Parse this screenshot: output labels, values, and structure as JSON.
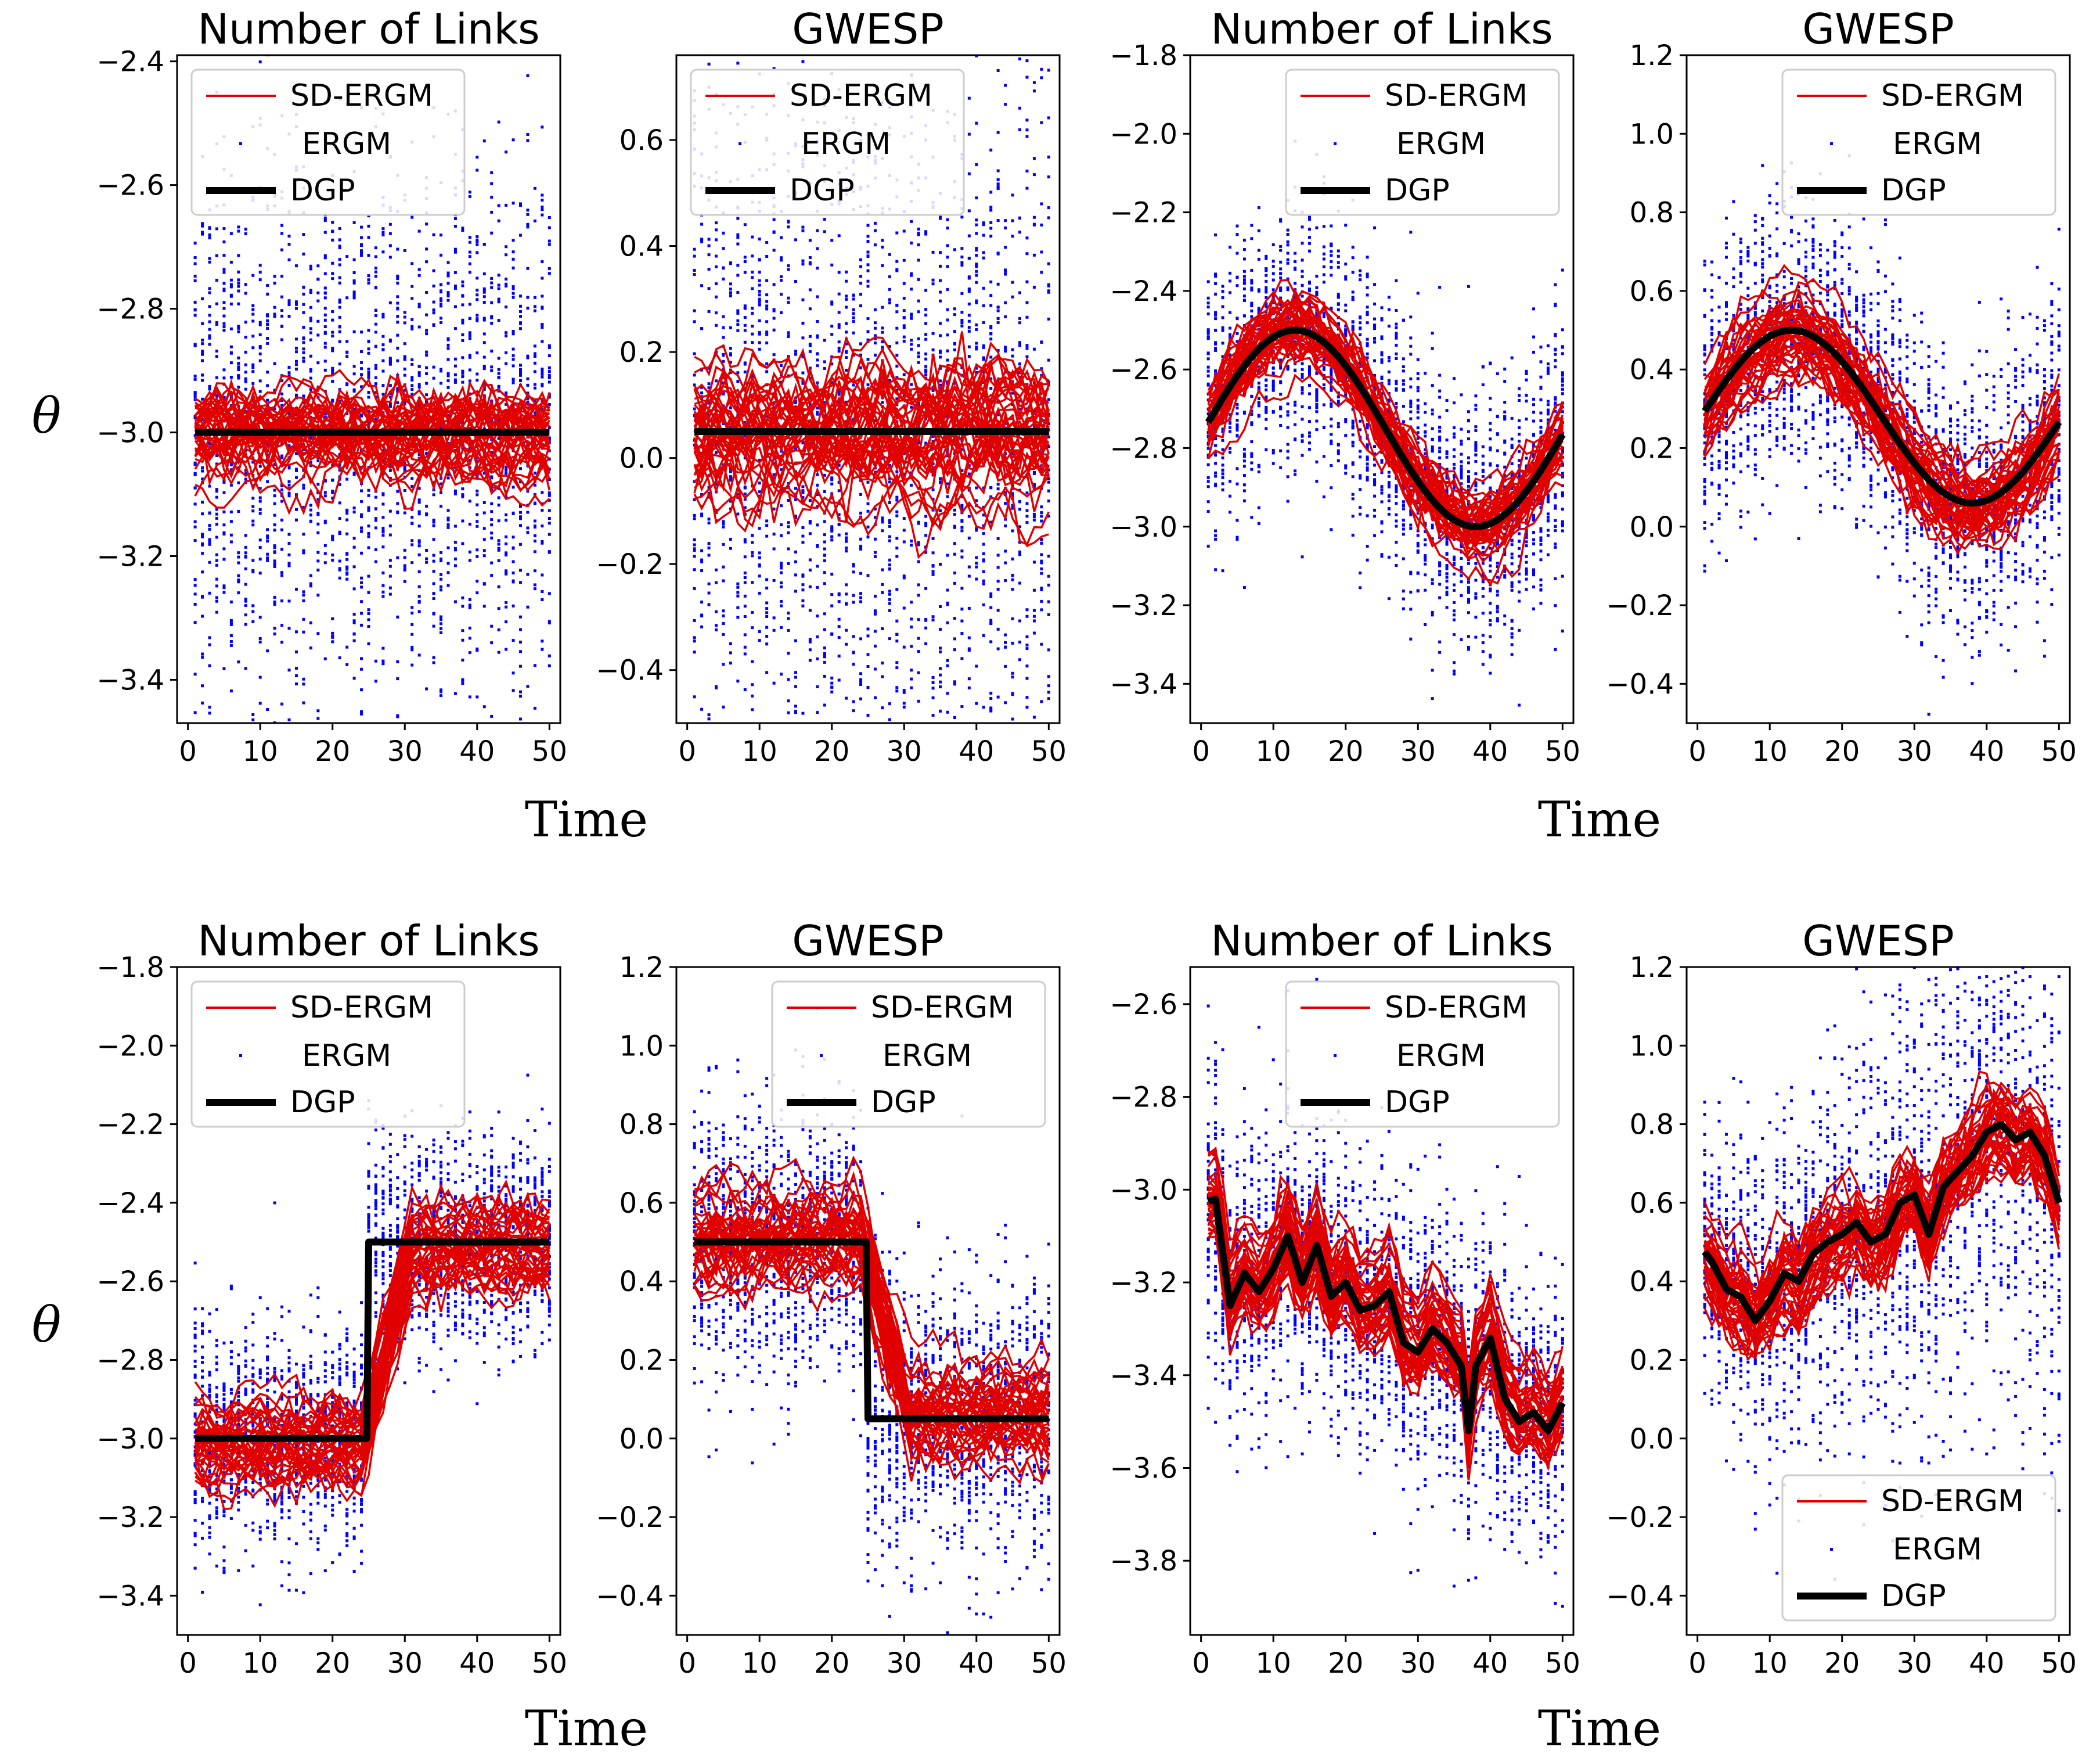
{
  "figure": {
    "xlabel": "Time",
    "ylabel": "θ",
    "colors": {
      "sd_ergm": "#e00000",
      "ergm": "#0000ff",
      "dgp": "#000000"
    }
  },
  "chart_data": [
    {
      "type": "line",
      "title": "Number of Links",
      "ylim": [
        -3.47,
        -2.39
      ],
      "yticks": [
        "−2.4",
        "−2.6",
        "−2.8",
        "−3.0",
        "−3.2",
        "−3.4"
      ],
      "ytick_values": [
        -2.4,
        -2.6,
        -2.8,
        -3.0,
        -3.2,
        -3.4
      ],
      "xlim": [
        -1.5,
        51.5
      ],
      "xticks": [
        "0",
        "10",
        "20",
        "30",
        "40",
        "50"
      ],
      "xtick_values": [
        0,
        10,
        20,
        30,
        40,
        50
      ],
      "legend": [
        "SD-ERGM",
        "ERGM",
        "DGP"
      ],
      "legend_loc": "upper-left",
      "dgp": {
        "kind": "const",
        "value": -3.0
      },
      "sd_spread": 0.045,
      "ergm_spread": 0.22,
      "trend": 0
    },
    {
      "type": "line",
      "title": "GWESP",
      "ylim": [
        -0.5,
        0.76
      ],
      "yticks": [
        "0.6",
        "0.4",
        "0.2",
        "0.0",
        "−0.2",
        "−0.4"
      ],
      "ytick_values": [
        0.6,
        0.4,
        0.2,
        0.0,
        -0.2,
        -0.4
      ],
      "xlim": [
        -1.5,
        51.5
      ],
      "xticks": [
        "0",
        "10",
        "20",
        "30",
        "40",
        "50"
      ],
      "xtick_values": [
        0,
        10,
        20,
        30,
        40,
        50
      ],
      "legend": [
        "SD-ERGM",
        "ERGM",
        "DGP"
      ],
      "legend_loc": "upper-left",
      "dgp": {
        "kind": "const",
        "value": 0.05
      },
      "sd_spread": 0.07,
      "ergm_spread": 0.35,
      "trend": 0
    },
    {
      "type": "line",
      "title": "Number of Links",
      "ylim": [
        -3.5,
        -1.8
      ],
      "yticks": [
        "−1.8",
        "−2.0",
        "−2.2",
        "−2.4",
        "−2.6",
        "−2.8",
        "−3.0",
        "−3.2",
        "−3.4"
      ],
      "ytick_values": [
        -1.8,
        -2.0,
        -2.2,
        -2.4,
        -2.6,
        -2.8,
        -3.0,
        -3.2,
        -3.4
      ],
      "xlim": [
        -1.5,
        51.5
      ],
      "xticks": [
        "0",
        "10",
        "20",
        "30",
        "40",
        "50"
      ],
      "xtick_values": [
        0,
        10,
        20,
        30,
        40,
        50
      ],
      "legend": [
        "SD-ERGM",
        "ERGM",
        "DGP"
      ],
      "legend_loc": "upper-right",
      "dgp": {
        "kind": "sine",
        "mean": -2.75,
        "amp": 0.25
      },
      "sd_spread": 0.06,
      "ergm_spread": 0.17,
      "trend": 0
    },
    {
      "type": "line",
      "title": "GWESP",
      "ylim": [
        -0.5,
        1.2
      ],
      "yticks": [
        "1.2",
        "1.0",
        "0.8",
        "0.6",
        "0.4",
        "0.2",
        "0.0",
        "−0.2",
        "−0.4"
      ],
      "ytick_values": [
        1.2,
        1.0,
        0.8,
        0.6,
        0.4,
        0.2,
        0.0,
        -0.2,
        -0.4
      ],
      "xlim": [
        -1.5,
        51.5
      ],
      "xticks": [
        "0",
        "10",
        "20",
        "30",
        "40",
        "50"
      ],
      "xtick_values": [
        0,
        10,
        20,
        30,
        40,
        50
      ],
      "legend": [
        "SD-ERGM",
        "ERGM",
        "DGP"
      ],
      "legend_loc": "upper-right",
      "dgp": {
        "kind": "sine",
        "mean": 0.28,
        "amp": 0.22
      },
      "sd_spread": 0.06,
      "ergm_spread": 0.18,
      "trend": 0
    },
    {
      "type": "line",
      "title": "Number of Links",
      "ylim": [
        -3.5,
        -1.8
      ],
      "yticks": [
        "−1.8",
        "−2.0",
        "−2.2",
        "−2.4",
        "−2.6",
        "−2.8",
        "−3.0",
        "−3.2",
        "−3.4"
      ],
      "ytick_values": [
        -1.8,
        -2.0,
        -2.2,
        -2.4,
        -2.6,
        -2.8,
        -3.0,
        -3.2,
        -3.4
      ],
      "xlim": [
        -1.5,
        51.5
      ],
      "xticks": [
        "0",
        "10",
        "20",
        "30",
        "40",
        "50"
      ],
      "xtick_values": [
        0,
        10,
        20,
        30,
        40,
        50
      ],
      "legend": [
        "SD-ERGM",
        "ERGM",
        "DGP"
      ],
      "legend_loc": "upper-left",
      "dgp": {
        "kind": "step",
        "before": -3.0,
        "after": -2.5,
        "at": 25
      },
      "sd_spread": 0.06,
      "ergm_spread": 0.14,
      "trend": 0
    },
    {
      "type": "line",
      "title": "GWESP",
      "ylim": [
        -0.5,
        1.2
      ],
      "yticks": [
        "1.2",
        "1.0",
        "0.8",
        "0.6",
        "0.4",
        "0.2",
        "0.0",
        "−0.2",
        "−0.4"
      ],
      "ytick_values": [
        1.2,
        1.0,
        0.8,
        0.6,
        0.4,
        0.2,
        0.0,
        -0.2,
        -0.4
      ],
      "xlim": [
        -1.5,
        51.5
      ],
      "xticks": [
        "0",
        "10",
        "20",
        "30",
        "40",
        "50"
      ],
      "xtick_values": [
        0,
        10,
        20,
        30,
        40,
        50
      ],
      "legend": [
        "SD-ERGM",
        "ERGM",
        "DGP"
      ],
      "legend_loc": "upper-right",
      "dgp": {
        "kind": "step",
        "before": 0.5,
        "after": 0.05,
        "at": 25
      },
      "sd_spread": 0.07,
      "ergm_spread": 0.18,
      "trend": 0
    },
    {
      "type": "line",
      "title": "Number of Links",
      "ylim": [
        -3.96,
        -2.52
      ],
      "yticks": [
        "−2.6",
        "−2.8",
        "−3.0",
        "−3.2",
        "−3.4",
        "−3.6",
        "−3.8"
      ],
      "ytick_values": [
        -2.6,
        -2.8,
        -3.0,
        -3.2,
        -3.4,
        -3.6,
        -3.8
      ],
      "xlim": [
        -1.5,
        51.5
      ],
      "xticks": [
        "0",
        "10",
        "20",
        "30",
        "40",
        "50"
      ],
      "xtick_values": [
        0,
        10,
        20,
        30,
        40,
        50
      ],
      "legend": [
        "SD-ERGM",
        "ERGM",
        "DGP"
      ],
      "legend_loc": "upper-right",
      "dgp": {
        "kind": "points",
        "x": [
          0,
          2,
          4,
          6,
          8,
          10,
          12,
          14,
          16,
          18,
          20,
          22,
          24,
          26,
          28,
          30,
          32,
          34,
          36,
          37,
          38,
          40,
          42,
          44,
          46,
          48,
          50
        ],
        "y": [
          -3.03,
          -3.02,
          -3.25,
          -3.18,
          -3.22,
          -3.17,
          -3.1,
          -3.2,
          -3.12,
          -3.23,
          -3.2,
          -3.26,
          -3.25,
          -3.22,
          -3.33,
          -3.35,
          -3.3,
          -3.33,
          -3.38,
          -3.52,
          -3.38,
          -3.32,
          -3.45,
          -3.5,
          -3.48,
          -3.52,
          -3.46
        ]
      },
      "sd_spread": 0.05,
      "ergm_spread": 0.16,
      "trend": 0
    },
    {
      "type": "line",
      "title": "GWESP",
      "ylim": [
        -0.5,
        1.2
      ],
      "yticks": [
        "1.2",
        "1.0",
        "0.8",
        "0.6",
        "0.4",
        "0.2",
        "0.0",
        "−0.2",
        "−0.4"
      ],
      "ytick_values": [
        1.2,
        1.0,
        0.8,
        0.6,
        0.4,
        0.2,
        0.0,
        -0.2,
        -0.4
      ],
      "xlim": [
        -1.5,
        51.5
      ],
      "xticks": [
        "0",
        "10",
        "20",
        "30",
        "40",
        "50"
      ],
      "xtick_values": [
        0,
        10,
        20,
        30,
        40,
        50
      ],
      "legend": [
        "SD-ERGM",
        "ERGM",
        "DGP"
      ],
      "legend_loc": "lower-right",
      "dgp": {
        "kind": "points",
        "x": [
          0,
          2,
          4,
          6,
          8,
          10,
          12,
          14,
          16,
          18,
          20,
          22,
          24,
          26,
          28,
          30,
          32,
          34,
          36,
          38,
          40,
          42,
          44,
          46,
          48,
          50
        ],
        "y": [
          0.5,
          0.45,
          0.38,
          0.36,
          0.3,
          0.35,
          0.42,
          0.4,
          0.47,
          0.5,
          0.52,
          0.55,
          0.5,
          0.52,
          0.6,
          0.62,
          0.52,
          0.64,
          0.68,
          0.72,
          0.78,
          0.8,
          0.76,
          0.78,
          0.72,
          0.6
        ]
      },
      "sd_spread": 0.07,
      "ergm_spread": 0.28,
      "trend": 0
    }
  ]
}
